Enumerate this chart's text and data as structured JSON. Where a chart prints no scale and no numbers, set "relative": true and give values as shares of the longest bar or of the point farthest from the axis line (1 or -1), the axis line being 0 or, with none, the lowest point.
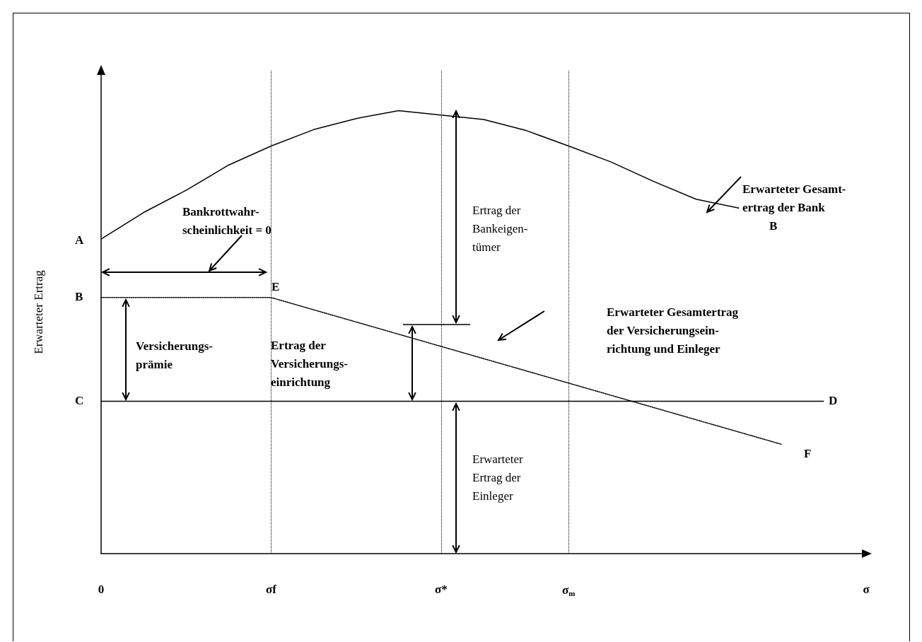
{
  "chart_data": {
    "type": "line",
    "relative": true,
    "ylabel": "Erwarteter Ertrag",
    "categories": [
      "0",
      null,
      null,
      null,
      "σf",
      null,
      null,
      null,
      "σ*",
      null,
      null,
      "σ$_{m}$",
      null,
      null,
      null,
      null,
      null,
      null,
      "σ"
    ],
    "series": [
      {
        "color": "#000000",
        "line_style": "solid",
        "values": [
          0.71,
          0.77,
          0.82,
          0.877,
          0.92,
          0.957,
          0.982,
          1.0,
          0.99,
          0.98,
          0.955,
          0.92,
          0.884,
          0.84,
          0.8,
          0.78,
          null,
          null,
          null
        ]
      },
      {
        "color": "#000000",
        "line_style": "dotted",
        "values": [
          0.578,
          null,
          null,
          null,
          0.578,
          null,
          null,
          null,
          null,
          null,
          null,
          null,
          null,
          null,
          null,
          null,
          0.247,
          null,
          null
        ]
      },
      {
        "color": "#000000",
        "line_style": "solid",
        "values": [
          0.344,
          0.344,
          0.344,
          0.344,
          0.344,
          0.344,
          0.344,
          0.344,
          0.344,
          0.344,
          0.344,
          0.344,
          0.344,
          0.344,
          0.344,
          0.344,
          0.344,
          0.344,
          null
        ]
      }
    ],
    "ref_lines": [
      {
        "axis": "x",
        "value": "σf",
        "color": "#000000",
        "line_style": "dotted"
      },
      {
        "axis": "x",
        "value": "σ*",
        "color": "#000000",
        "line_style": "dotted"
      },
      {
        "axis": "x",
        "value": "σ$_{m}$",
        "color": "#000000",
        "line_style": "dotted"
      }
    ],
    "annotations": [
      "A",
      "B",
      "C",
      "E",
      "D",
      "F",
      "B",
      "Erwarteter Gesamt-\nertrag der Bank",
      "Bankrottwahr-\nscheinlichkeit = 0",
      "Versicherungs-\nprämie",
      "Ertrag der\nVersicherungs-\neinrichtung",
      "Ertrag der\nBankeigen-\ntümer",
      "Erwarteter Gesamtertrag\nder Versicherungsein-\nrichtung und Einleger",
      "Erwarteter\nErtrag der\nEinleger"
    ],
    "grid": false,
    "marker": "none"
  }
}
